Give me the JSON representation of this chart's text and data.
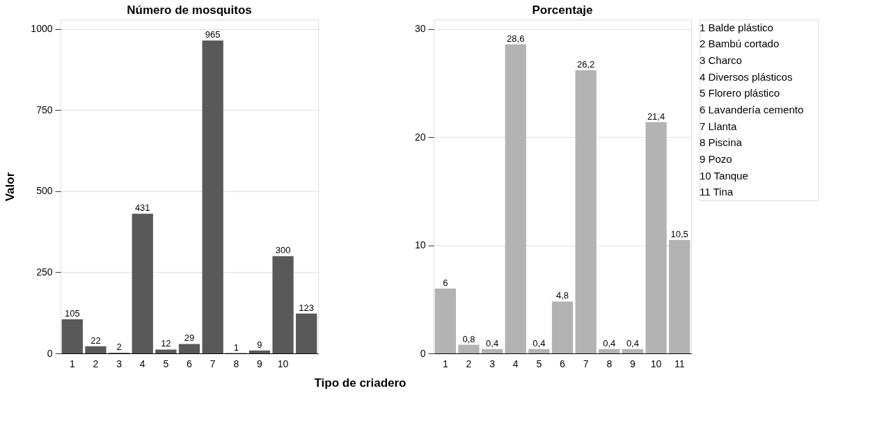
{
  "chart_data": [
    {
      "type": "bar",
      "title": "Número de mosquitos",
      "xlabel": "Tipo de criadero",
      "ylabel": "Valor",
      "categories": [
        "1",
        "2",
        "3",
        "4",
        "5",
        "6",
        "7",
        "8",
        "9",
        "10",
        null
      ],
      "values": [
        105,
        22,
        2,
        431,
        12,
        29,
        965,
        1,
        9,
        300,
        123
      ],
      "color": "#595959",
      "ylim": [
        0,
        1030
      ],
      "yticks": [
        0,
        250,
        500,
        750,
        1000
      ],
      "grid": "y",
      "data_labels": true
    },
    {
      "type": "bar",
      "title": "Porcentaje",
      "categories": [
        "1",
        "2",
        "3",
        "4",
        "5",
        "6",
        "7",
        "8",
        "9",
        "10",
        "11"
      ],
      "values": [
        6,
        0.8,
        0.4,
        28.6,
        0.4,
        4.8,
        26.2,
        0.4,
        0.4,
        21.4,
        10.5
      ],
      "color": "#b3b3b3",
      "ylim": [
        0,
        30.9
      ],
      "yticks": [
        0,
        10,
        20,
        30
      ],
      "grid": "y",
      "value_labels": [
        "6",
        "0,8",
        "0,4",
        "28,6",
        "0,4",
        "4,8",
        "26,2",
        "0,4",
        "0,4",
        "21,4",
        "10,5"
      ],
      "annotations": [
        "1 Balde plástico",
        "2 Bambú cortado",
        "3 Charco",
        "4 Diversos plásticos",
        "5 Florero plástico",
        "6 Lavandería cemento",
        "7 Llanta",
        "8 Piscina",
        "9 Pozo",
        "10 Tanque",
        "11 Tina"
      ]
    }
  ]
}
